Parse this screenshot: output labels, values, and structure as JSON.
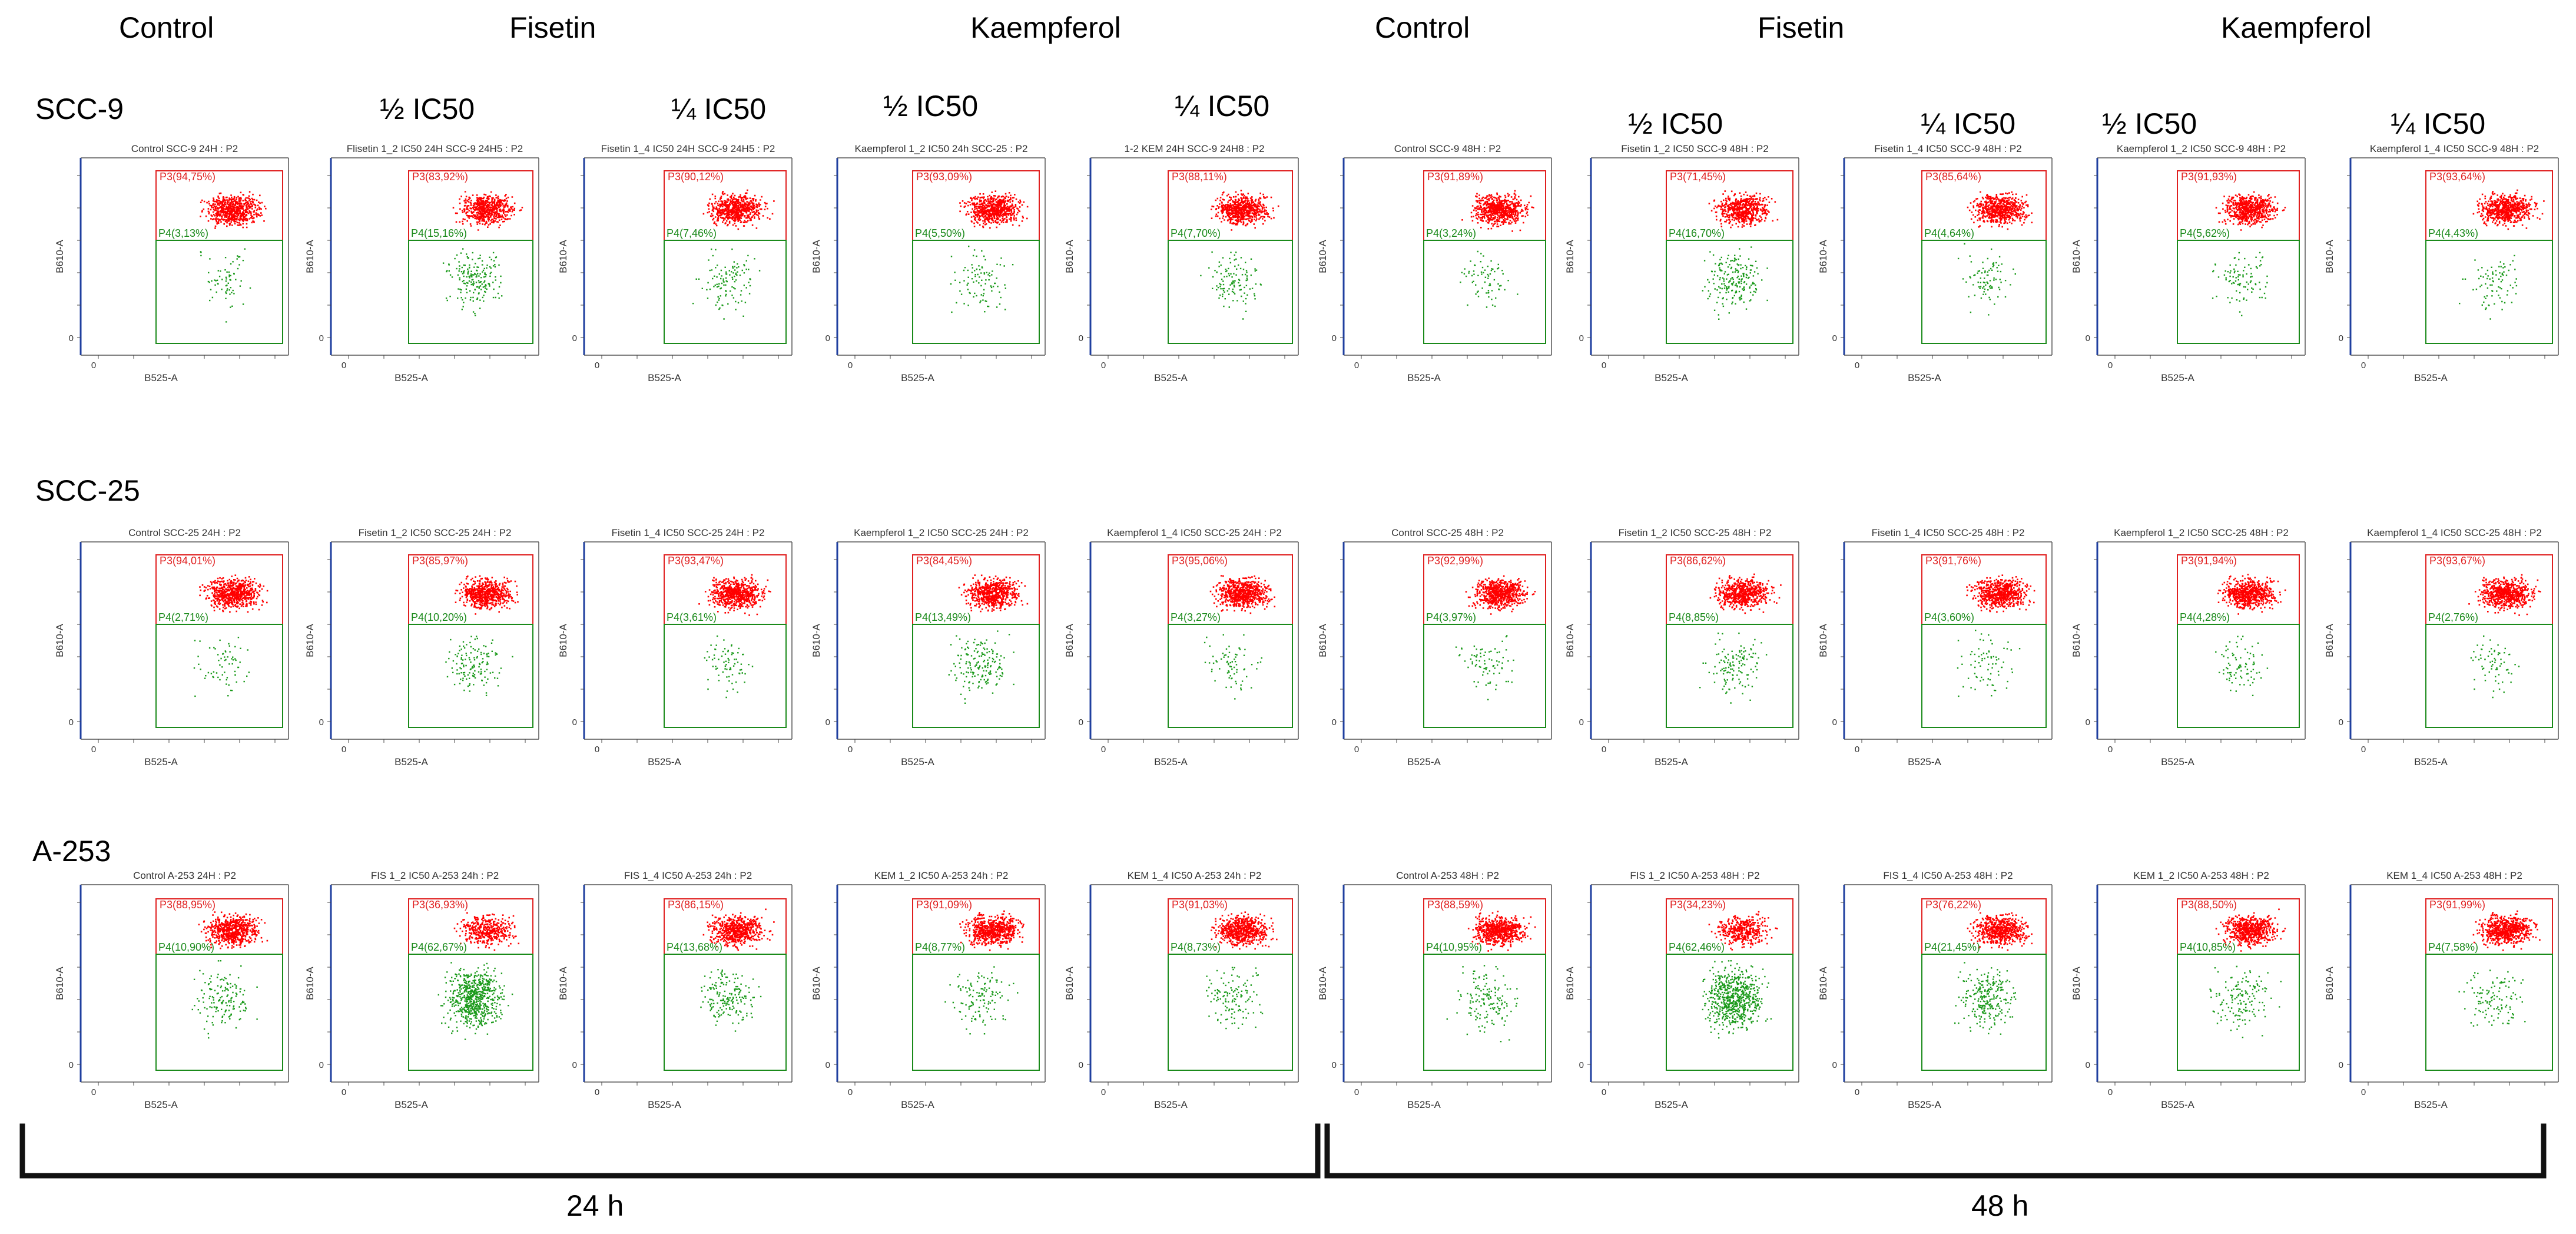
{
  "column_headers": [
    "Control",
    "Fisetin",
    "Kaempferol",
    "Control",
    "Fisetin",
    "Kaempferol"
  ],
  "dose_labels": [
    "½ IC50",
    "¼ IC50",
    "½ IC50",
    "¼ IC50",
    "½ IC50",
    "¼ IC50",
    "½ IC50",
    "¼ IC50"
  ],
  "row_labels": [
    "SCC-9",
    "SCC-25",
    "A-253"
  ],
  "time_labels": [
    "24 h",
    "48 h"
  ],
  "axis": {
    "x_label": "B525-A",
    "y_label": "B610-A",
    "tick_zero": "0",
    "gate_high": "P3",
    "gate_low": "P4"
  },
  "colors": {
    "p3_gate": "#e02020",
    "p4_gate": "#1a8a1a",
    "p3_dots": "#ff0000",
    "p4_dots": "#1a9a1a",
    "axis": "#1f3f9f"
  },
  "panels": [
    [
      {
        "title": "Control SCC-9 24H : P2",
        "p3": "P3(94,75%)",
        "p4": "P4(3,13%)"
      },
      {
        "title": "Flisetin 1_2 IC50 24H SCC-9 24H5 : P2",
        "p3": "P3(83,92%)",
        "p4": "P4(15,16%)"
      },
      {
        "title": "Fisetin 1_4 IC50 24H SCC-9 24H5 : P2",
        "p3": "P3(90,12%)",
        "p4": "P4(7,46%)"
      },
      {
        "title": "Kaempferol 1_2 IC50 24h SCC-25 : P2",
        "p3": "P3(93,09%)",
        "p4": "P4(5,50%)"
      },
      {
        "title": "1-2 KEM 24H SCC-9 24H8 : P2",
        "p3": "P3(88,11%)",
        "p4": "P4(7,70%)"
      },
      {
        "title": "Control SCC-9 48H : P2",
        "p3": "P3(91,89%)",
        "p4": "P4(3,24%)"
      },
      {
        "title": "Fisetin 1_2 IC50 SCC-9 48H : P2",
        "p3": "P3(71,45%)",
        "p4": "P4(16,70%)"
      },
      {
        "title": "Fisetin 1_4 IC50 SCC-9 48H : P2",
        "p3": "P3(85,64%)",
        "p4": "P4(4,64%)"
      },
      {
        "title": "Kaempferol 1_2 IC50 SCC-9 48H : P2",
        "p3": "P3(91,93%)",
        "p4": "P4(5,62%)"
      },
      {
        "title": "Kaempferol 1_4 IC50 SCC-9 48H : P2",
        "p3": "P3(93,64%)",
        "p4": "P4(4,43%)"
      }
    ],
    [
      {
        "title": "Control SCC-25 24H : P2",
        "p3": "P3(94,01%)",
        "p4": "P4(2,71%)"
      },
      {
        "title": "Fisetin 1_2 IC50 SCC-25 24H : P2",
        "p3": "P3(85,97%)",
        "p4": "P4(10,20%)"
      },
      {
        "title": "Fisetin 1_4 IC50 SCC-25 24H : P2",
        "p3": "P3(93,47%)",
        "p4": "P4(3,61%)"
      },
      {
        "title": "Kaempferol 1_2 IC50 SCC-25 24H : P2",
        "p3": "P3(84,45%)",
        "p4": "P4(13,49%)"
      },
      {
        "title": "Kaempferol 1_4 IC50 SCC-25 24H : P2",
        "p3": "P3(95,06%)",
        "p4": "P4(3,27%)"
      },
      {
        "title": "Control SCC-25 48H : P2",
        "p3": "P3(92,99%)",
        "p4": "P4(3,97%)"
      },
      {
        "title": "Fisetin 1_2 IC50 SCC-25 48H : P2",
        "p3": "P3(86,62%)",
        "p4": "P4(8,85%)"
      },
      {
        "title": "Fisetin 1_4 IC50 SCC-25 48H : P2",
        "p3": "P3(91,76%)",
        "p4": "P4(3,60%)"
      },
      {
        "title": "Kaempferol 1_2 IC50 SCC-25 48H : P2",
        "p3": "P3(91,94%)",
        "p4": "P4(4,28%)"
      },
      {
        "title": "Kaempferol 1_4 IC50 SCC-25 48H : P2",
        "p3": "P3(93,67%)",
        "p4": "P4(2,76%)"
      }
    ],
    [
      {
        "title": "Control A-253 24H : P2",
        "p3": "P3(88,95%)",
        "p4": "P4(10,90%)"
      },
      {
        "title": "FIS 1_2 IC50 A-253 24h : P2",
        "p3": "P3(36,93%)",
        "p4": "P4(62,67%)"
      },
      {
        "title": "FIS 1_4 IC50 A-253 24h : P2",
        "p3": "P3(86,15%)",
        "p4": "P4(13,68%)"
      },
      {
        "title": "KEM 1_2 IC50 A-253 24h : P2",
        "p3": "P3(91,09%)",
        "p4": "P4(8,77%)"
      },
      {
        "title": "KEM 1_4 IC50 A-253 24h : P2",
        "p3": "P3(91,03%)",
        "p4": "P4(8,73%)"
      },
      {
        "title": "Control A-253 48H : P2",
        "p3": "P3(88,59%)",
        "p4": "P4(10,95%)"
      },
      {
        "title": "FIS 1_2 IC50 A-253 48H : P2",
        "p3": "P3(34,23%)",
        "p4": "P4(62,46%)"
      },
      {
        "title": "FIS 1_4 IC50 A-253 48H : P2",
        "p3": "P3(76,22%)",
        "p4": "P4(21,45%)"
      },
      {
        "title": "KEM 1_2 IC50 A-253 48H : P2",
        "p3": "P3(88,50%)",
        "p4": "P4(10,85%)"
      },
      {
        "title": "KEM 1_4 IC50 A-253 48H : P2",
        "p3": "P3(91,99%)",
        "p4": "P4(7,58%)"
      }
    ]
  ]
}
